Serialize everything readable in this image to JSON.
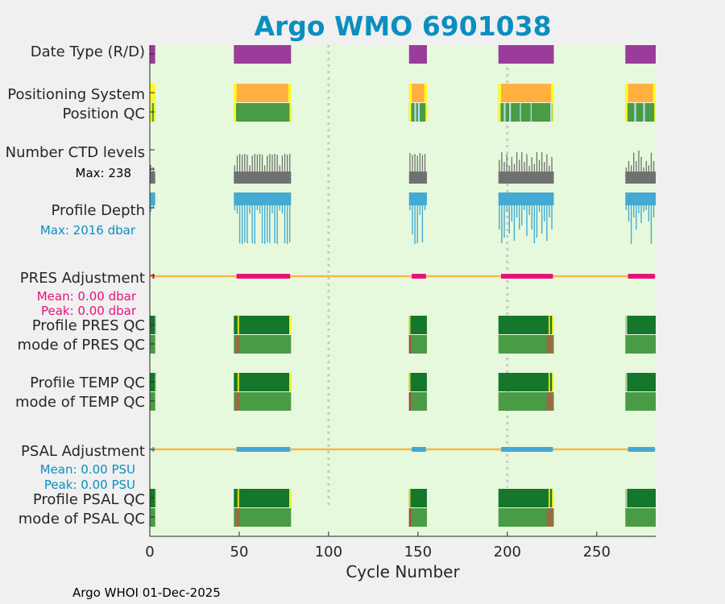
{
  "chart_data": {
    "type": "bar",
    "title": "Argo WMO 6901038",
    "xlabel": "Cycle Number",
    "xlim": [
      0,
      283
    ],
    "xticks": [
      0,
      50,
      100,
      150,
      200,
      250
    ],
    "dotted_cycles": [
      100,
      200
    ],
    "footer": "Argo WHOI 01-Dec-2025",
    "row_labels": {
      "date_type": "Date Type (R/D)",
      "positioning": "Positioning System",
      "position_qc": "Position QC",
      "ctd_levels": "Number CTD levels",
      "ctd_max": "Max: 238",
      "profile_depth": "Profile Depth",
      "depth_max": "Max: 2016 dbar",
      "pres_adj": "PRES Adjustment",
      "pres_mean": "Mean: 0.00 dbar",
      "pres_peak": "Peak: 0.00 dbar",
      "profile_pres_qc": "Profile PRES QC",
      "mode_pres_qc": "mode of PRES QC",
      "profile_temp_qc": "Profile TEMP QC",
      "mode_temp_qc": "mode of TEMP QC",
      "psal_adj": "PSAL Adjustment",
      "psal_mean": "Mean: 0.00 PSU",
      "psal_peak": "Peak: 0.00 PSU",
      "profile_psal_qc": "Profile PSAL QC",
      "mode_psal_qc": "mode of PSAL QC"
    },
    "colors": {
      "plot_bg": "#e6f9dc",
      "page_bg": "#f0f0f0",
      "title": "#0b8ec1",
      "date_type": "#9b3b9b",
      "gps": "#ffb040",
      "gps_edge": "#ffff1a",
      "position_qc": "#4a9b45",
      "ctd": "#707070",
      "depth": "#44aad4",
      "pres_adj": "#e8127d",
      "adj_line": "#f4b64a",
      "psal_adj": "#44aad4",
      "qc_dark": "#15772b",
      "qc_mode": "#4a9b45",
      "qc_edge_yellow": "#d5d51a",
      "qc_edge_brown": "#9a6b42",
      "gap_light": "#b8dcf0",
      "dotted": "#c8c8c8"
    },
    "cycle_segments": [
      {
        "start": 0,
        "end": 3
      },
      {
        "start": 47,
        "end": 79
      },
      {
        "start": 145,
        "end": 155
      },
      {
        "start": 195,
        "end": 226
      },
      {
        "start": 266,
        "end": 283
      }
    ],
    "ctd_levels_range": [
      0,
      238
    ],
    "profile_depth_range_dbar": [
      0,
      2016
    ]
  }
}
